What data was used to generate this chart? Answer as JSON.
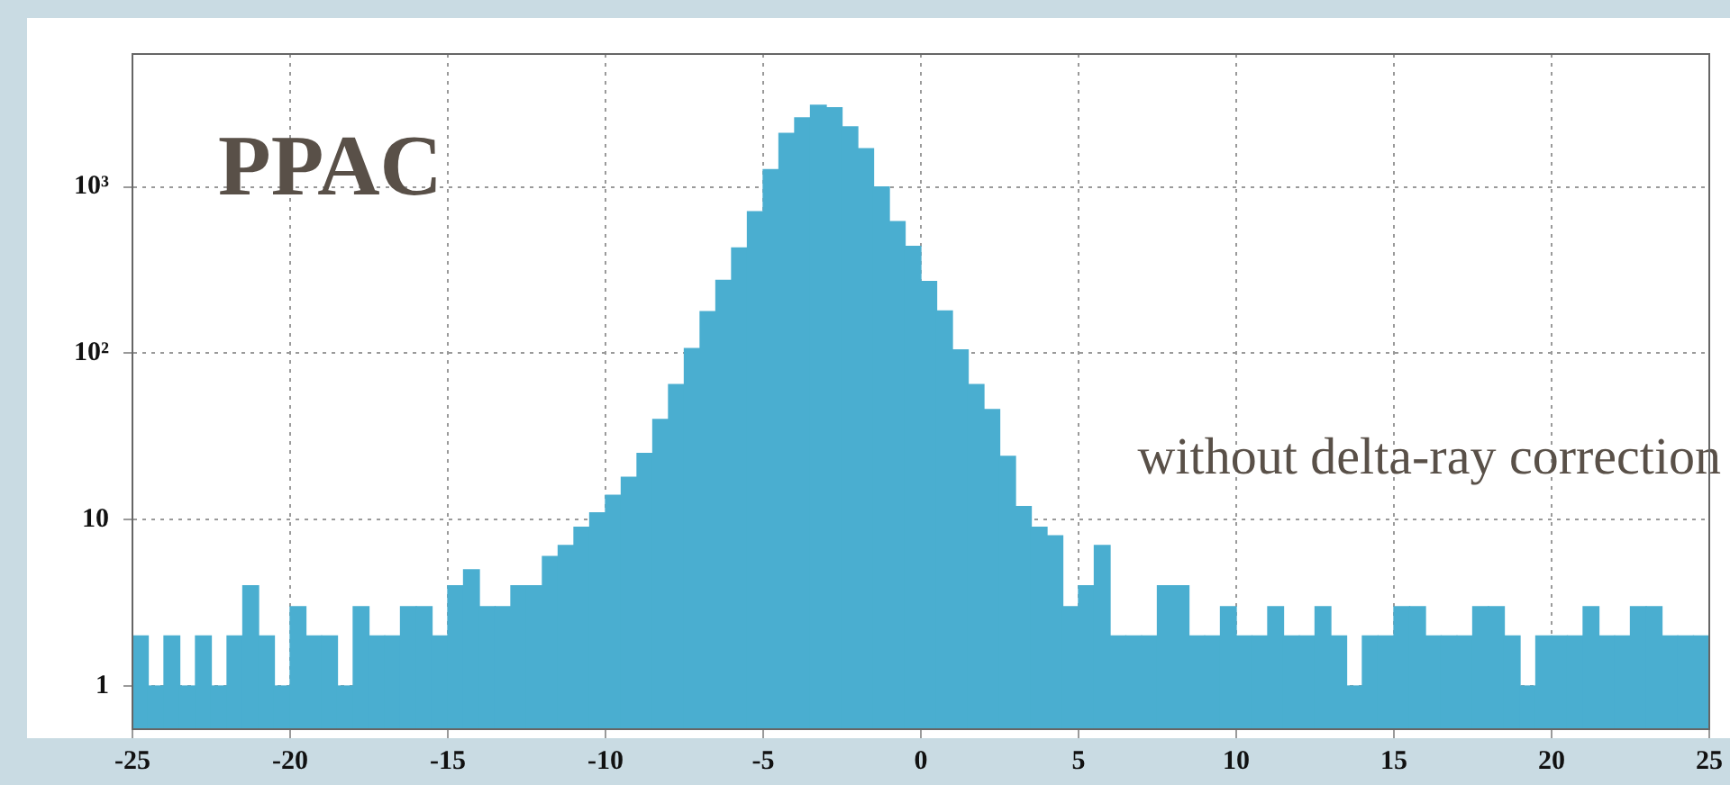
{
  "chart_data": {
    "type": "histogram",
    "title": "PPAC",
    "annotations": [
      "without delta-ray correction"
    ],
    "bins": [
      -25,
      -24.5,
      -24,
      -23.5,
      -23,
      -22.5,
      -22,
      -21.5,
      -21,
      -20.5,
      -20,
      -19.5,
      -19,
      -18.5,
      -18,
      -17.5,
      -17,
      -16.5,
      -16,
      -15.5,
      -15,
      -14.5,
      -14,
      -13.5,
      -13,
      -12.5,
      -12,
      -11.5,
      -11,
      -10.5,
      -10,
      -9.5,
      -9,
      -8.5,
      -8,
      -7.5,
      -7,
      -6.5,
      -6,
      -5.5,
      -5,
      -4.5,
      -4,
      -3.5,
      -3,
      -2.5,
      -2,
      -1.5,
      -1,
      -0.5,
      0,
      0.5,
      1,
      1.5,
      2,
      2.5,
      3,
      3.5,
      4,
      4.5,
      5,
      5.5,
      6,
      6.5,
      7,
      7.5,
      8,
      8.5,
      9,
      9.5,
      10,
      10.5,
      11,
      11.5,
      12,
      12.5,
      13,
      13.5,
      14,
      14.5,
      15,
      15.5,
      16,
      16.5,
      17,
      17.5,
      18,
      18.5,
      19,
      19.5,
      20,
      20.5,
      21,
      21.5,
      22,
      22.5,
      23,
      23.5,
      24,
      24.5,
      25
    ],
    "values": [
      2,
      1,
      2,
      1,
      2,
      1,
      2,
      4,
      2,
      1,
      3,
      2,
      2,
      1,
      3,
      2,
      2,
      3,
      3,
      2,
      4,
      5,
      3,
      3,
      4,
      4,
      6,
      7,
      9,
      11,
      14,
      18,
      25,
      40,
      65,
      107,
      178,
      275,
      430,
      710,
      1270,
      2100,
      2600,
      3100,
      3000,
      2300,
      1700,
      1000,
      620,
      440,
      270,
      180,
      105,
      65,
      46,
      24,
      12,
      9,
      8,
      3,
      4,
      7,
      2,
      2,
      2,
      4,
      4,
      2,
      2,
      3,
      2,
      2,
      3,
      2,
      2,
      3,
      2,
      1,
      2,
      2,
      3,
      3,
      2,
      2,
      2,
      3,
      3,
      2,
      1,
      2,
      2,
      2,
      3,
      2,
      2,
      3,
      3,
      2,
      2,
      2
    ],
    "color": "#4aaed0",
    "xlim": [
      -25,
      25
    ],
    "xticks": [
      -25,
      -20,
      -15,
      -10,
      -5,
      0,
      5,
      10,
      15,
      20,
      25
    ],
    "ylim": [
      0.55,
      6300
    ],
    "yticks": [
      1,
      10,
      {
        "value": 100,
        "label": "10²"
      },
      {
        "value": 1000,
        "label": "10³"
      }
    ],
    "log": "y",
    "grid": true
  }
}
